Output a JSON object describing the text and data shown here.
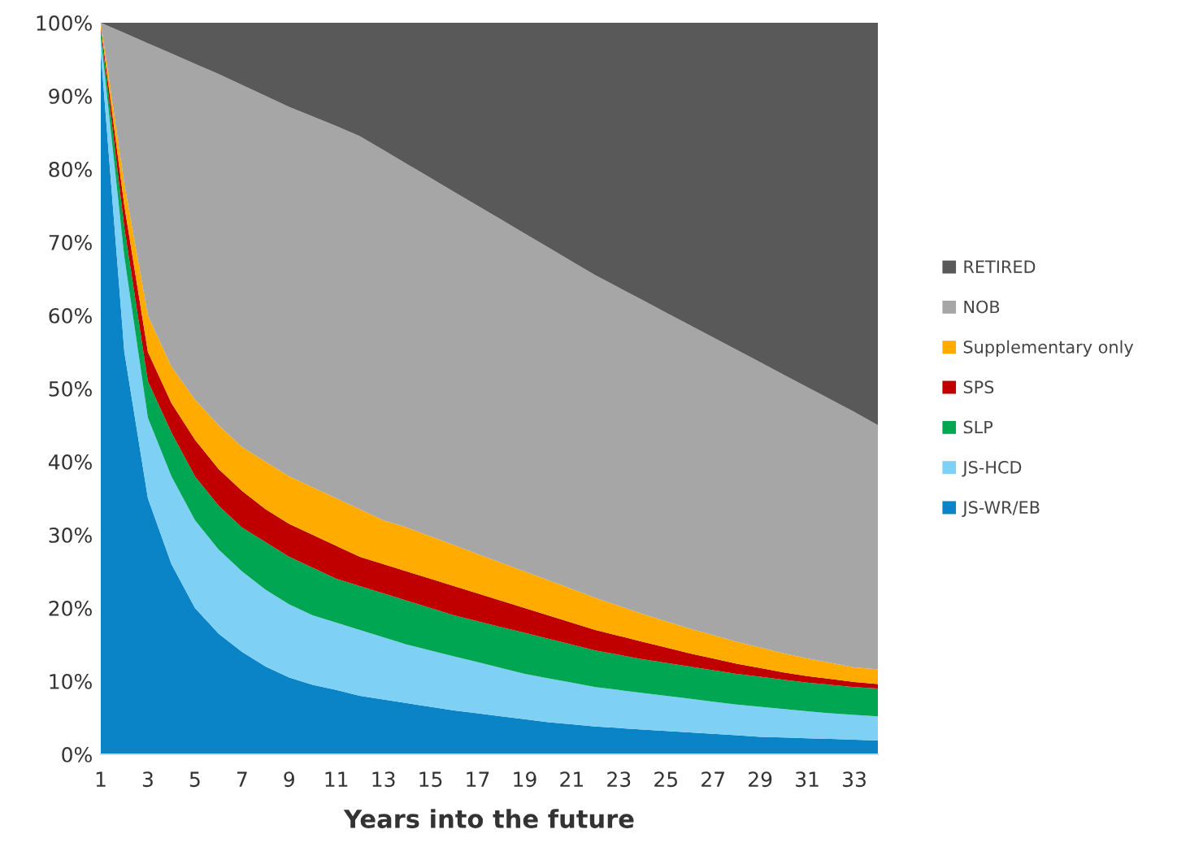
{
  "chart_data": {
    "type": "area",
    "stacked": true,
    "xlabel": "Years into the future",
    "categories": [
      "1",
      null,
      "3",
      null,
      "5",
      null,
      "7",
      null,
      "9",
      null,
      "11",
      null,
      "13",
      null,
      "15",
      null,
      "17",
      null,
      "19",
      null,
      "21",
      null,
      "23",
      null,
      "25",
      null,
      "27",
      null,
      "29",
      null,
      "31",
      null,
      "33",
      null
    ],
    "series": [
      {
        "name": "JS-WR/EB",
        "color": "#0a84c6",
        "values": [
          96,
          55,
          35,
          26,
          20,
          16.5,
          14,
          12,
          10.5,
          9.5,
          8.8,
          8,
          7.5,
          7,
          6.5,
          6,
          5.6,
          5.2,
          4.8,
          4.4,
          4.1,
          3.8,
          3.6,
          3.4,
          3.2,
          3,
          2.8,
          2.6,
          2.4,
          2.3,
          2.2,
          2.1,
          2,
          1.9
        ]
      },
      {
        "name": "JS-HCD",
        "color": "#7fd0f5",
        "values": [
          2,
          13,
          11,
          12,
          12,
          11.5,
          11,
          10.5,
          10,
          9.5,
          9.2,
          9,
          8.5,
          8,
          7.7,
          7.4,
          7,
          6.6,
          6.2,
          6,
          5.7,
          5.4,
          5.2,
          5,
          4.8,
          4.6,
          4.4,
          4.2,
          4.1,
          3.9,
          3.7,
          3.5,
          3.4,
          3.3
        ]
      },
      {
        "name": "SLP",
        "color": "#00a651",
        "values": [
          1,
          4,
          5,
          6,
          6,
          6,
          6,
          6.5,
          6.5,
          6.5,
          6,
          6,
          6,
          6,
          5.8,
          5.6,
          5.6,
          5.6,
          5.6,
          5.4,
          5.2,
          5,
          4.8,
          4.6,
          4.5,
          4.4,
          4.3,
          4.2,
          4.1,
          4,
          3.9,
          3.9,
          3.8,
          3.8
        ]
      },
      {
        "name": "SPS",
        "color": "#c00000",
        "values": [
          0.5,
          3,
          4,
          4,
          5,
          5,
          5,
          4.5,
          4.5,
          4.5,
          4.5,
          4,
          4,
          4,
          4,
          4,
          3.8,
          3.6,
          3.4,
          3.2,
          3,
          2.8,
          2.6,
          2.4,
          2.1,
          1.8,
          1.6,
          1.4,
          1.2,
          1,
          0.9,
          0.8,
          0.7,
          0.6
        ]
      },
      {
        "name": "Supplementary only",
        "color": "#ffab00",
        "values": [
          0.5,
          3,
          5,
          5,
          5.5,
          6,
          6,
          6.5,
          6.5,
          6.5,
          6.5,
          6.5,
          6,
          6,
          5.8,
          5.6,
          5.4,
          5.2,
          5,
          4.8,
          4.6,
          4.4,
          4.1,
          3.8,
          3.6,
          3.4,
          3.2,
          3,
          2.8,
          2.6,
          2.4,
          2.2,
          2,
          2
        ]
      },
      {
        "name": "NOB",
        "color": "#a6a6a6",
        "values": [
          0,
          20.6,
          37.2,
          42.8,
          45.9,
          48,
          49.5,
          50,
          50.5,
          50.7,
          50.9,
          51,
          50.6,
          49.7,
          49,
          48.3,
          47.6,
          46.9,
          46.2,
          45.5,
          44.8,
          44.1,
          43.5,
          42.9,
          42.2,
          41.5,
          40.7,
          39.9,
          39,
          38.1,
          37.1,
          36,
          34.9,
          33.4
        ]
      },
      {
        "name": "RETIRED",
        "color": "#595959",
        "values": [
          0,
          1.4,
          2.8,
          4.2,
          5.6,
          7,
          8.5,
          10,
          11.5,
          12.8,
          14.1,
          15.5,
          17.4,
          19.3,
          21.2,
          23.1,
          25,
          26.9,
          28.8,
          30.7,
          32.6,
          34.5,
          36.2,
          37.9,
          39.6,
          41.3,
          43,
          44.7,
          46.4,
          48.1,
          49.8,
          51.5,
          53.2,
          55
        ]
      }
    ],
    "ylim": [
      0,
      100
    ],
    "yticks": [
      {
        "value": 0,
        "label": "0%"
      },
      {
        "value": 10,
        "label": "10%"
      },
      {
        "value": 20,
        "label": "20%"
      },
      {
        "value": 30,
        "label": "30%"
      },
      {
        "value": 40,
        "label": "40%"
      },
      {
        "value": 50,
        "label": "50%"
      },
      {
        "value": 60,
        "label": "60%"
      },
      {
        "value": 70,
        "label": "70%"
      },
      {
        "value": 80,
        "label": "80%"
      },
      {
        "value": 90,
        "label": "90%"
      },
      {
        "value": 100,
        "label": "100%"
      }
    ],
    "legend": "right"
  }
}
